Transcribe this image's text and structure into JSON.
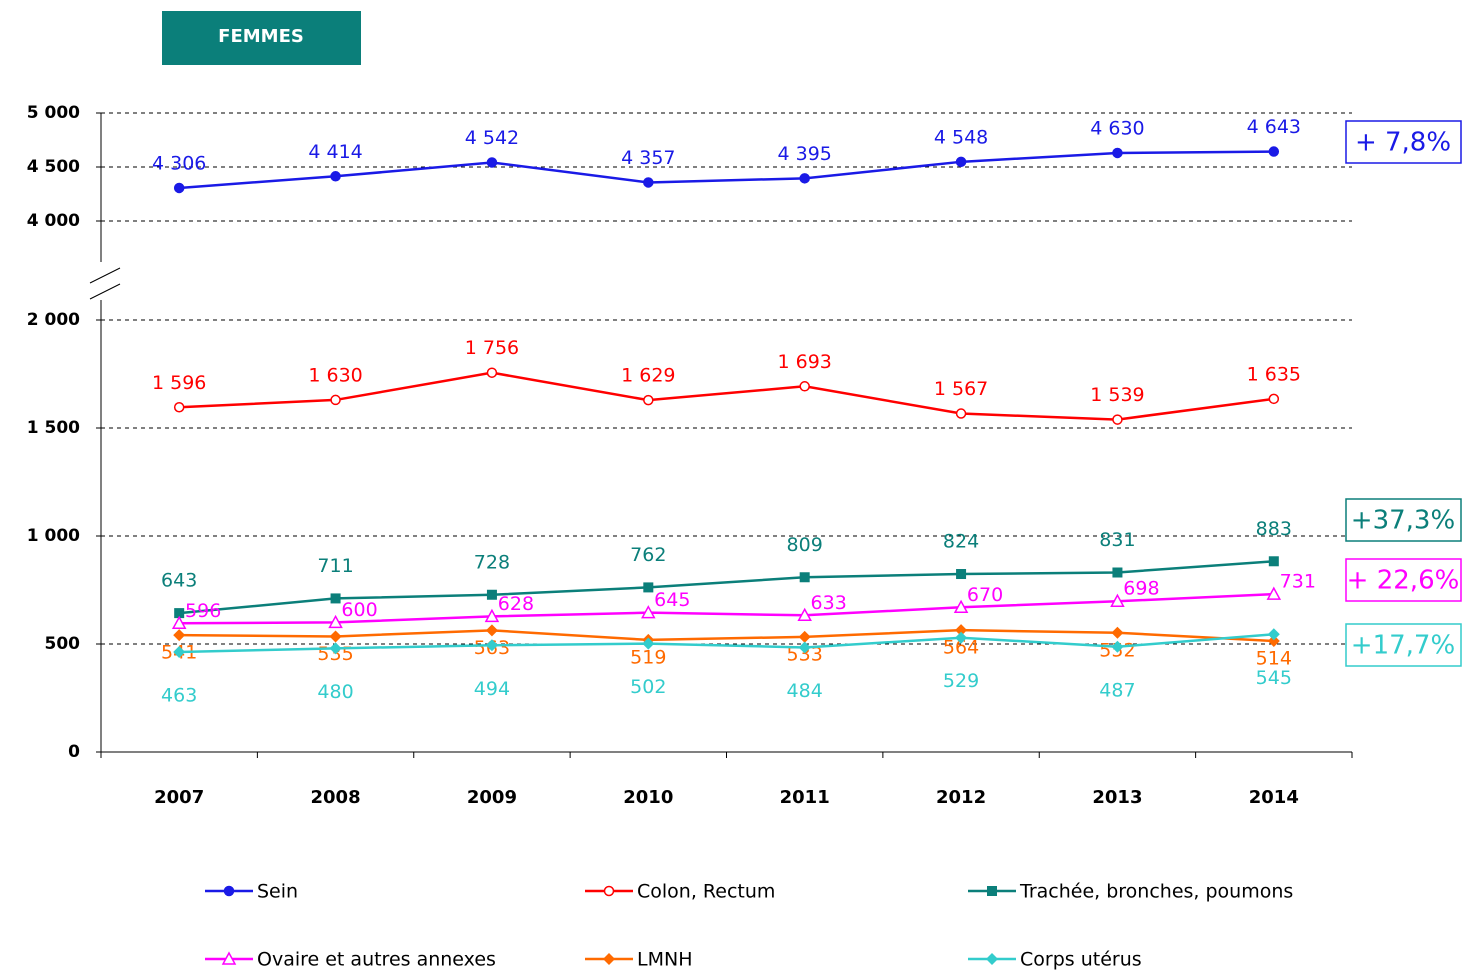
{
  "chart_data": {
    "type": "line",
    "title": "FEMMES",
    "categories": [
      "2007",
      "2008",
      "2009",
      "2010",
      "2011",
      "2012",
      "2013",
      "2014"
    ],
    "y_segments": [
      {
        "ylim": [
          0,
          2000
        ],
        "yticks": [
          0,
          500,
          {
            "value": 1000,
            "label": "1 000"
          },
          {
            "value": 1500,
            "label": "1 500"
          },
          {
            "value": 2000,
            "label": "2 000"
          }
        ]
      },
      {
        "ylim": [
          4000,
          5000
        ],
        "yticks": [
          {
            "value": 4000,
            "label": "4 000"
          },
          {
            "value": 4500,
            "label": "4 500"
          },
          {
            "value": 5000,
            "label": "5 000"
          }
        ]
      }
    ],
    "grid": true,
    "series": [
      {
        "name": "Sein",
        "color": "#1a1ae6",
        "marker": "circle",
        "values": [
          4306,
          4414,
          4542,
          4357,
          4395,
          4548,
          4630,
          4643
        ],
        "value_labels": [
          "4 306",
          "4 414",
          "4 542",
          "4 357",
          "4 395",
          "4 548",
          "4 630",
          "4 643"
        ],
        "change_label": "+ 7,8%"
      },
      {
        "name": "Colon, Rectum",
        "color": "#ff0000",
        "marker": "circle-open",
        "values": [
          1596,
          1630,
          1756,
          1629,
          1693,
          1567,
          1539,
          1635
        ],
        "value_labels": [
          "1 596",
          "1 630",
          "1 756",
          "1 629",
          "1 693",
          "1 567",
          "1 539",
          "1 635"
        ]
      },
      {
        "name": "Trachée, bronches, poumons",
        "color": "#0b7f7a",
        "marker": "square",
        "values": [
          643,
          711,
          728,
          762,
          809,
          824,
          831,
          883
        ],
        "change_label": "+37,3%"
      },
      {
        "name": "Ovaire et autres annexes",
        "color": "#ff00ff",
        "marker": "triangle-open",
        "values": [
          596,
          600,
          628,
          645,
          633,
          670,
          698,
          731
        ],
        "change_label": "+ 22,6%"
      },
      {
        "name": "LMNH",
        "color": "#ff6a00",
        "marker": "diamond",
        "values": [
          541,
          535,
          563,
          519,
          533,
          564,
          552,
          514
        ]
      },
      {
        "name": "Corps utérus",
        "color": "#33cccc",
        "marker": "diamond",
        "values": [
          463,
          480,
          494,
          502,
          484,
          529,
          487,
          545
        ],
        "change_label": "+17,7%"
      }
    ]
  }
}
